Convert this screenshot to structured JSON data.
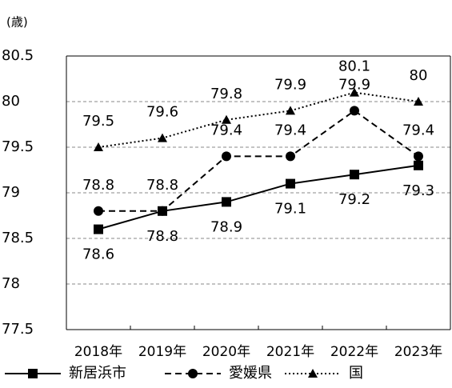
{
  "chart_data": {
    "type": "line",
    "unit_label": "(歳)",
    "categories": [
      "2018年",
      "2019年",
      "2020年",
      "2021年",
      "2022年",
      "2023年"
    ],
    "series": [
      {
        "name": "新居浜市",
        "color": "#000000",
        "dash": "solid",
        "marker": "square",
        "values": [
          78.6,
          78.8,
          78.9,
          79.1,
          79.2,
          79.3
        ]
      },
      {
        "name": "愛媛県",
        "color": "#000000",
        "dash": "dashed",
        "marker": "circle",
        "values": [
          78.8,
          78.8,
          79.4,
          79.4,
          79.9,
          79.4
        ]
      },
      {
        "name": "国",
        "color": "#000000",
        "dash": "dotted",
        "marker": "triangle",
        "values": [
          79.5,
          79.6,
          79.8,
          79.9,
          80.1,
          80
        ]
      }
    ],
    "ylim": [
      77.5,
      80.5
    ],
    "yticks": [
      77.5,
      78,
      78.5,
      79,
      79.5,
      80,
      80.5
    ],
    "grid": true,
    "legend": "bottom"
  }
}
